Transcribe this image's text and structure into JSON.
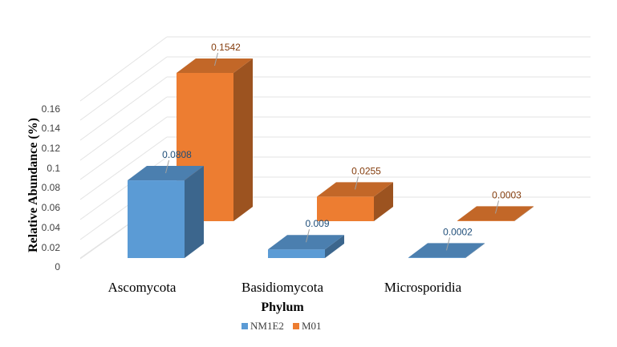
{
  "chart_data": {
    "type": "bar",
    "categories": [
      "Ascomycota",
      "Basidiomycota",
      "Microsporidia"
    ],
    "series": [
      {
        "name": "NM1E2",
        "values": [
          0.0808,
          0.009,
          0.0002
        ],
        "labels": [
          "0.0808",
          "0.009",
          "0.0002"
        ],
        "color": "#5B9BD5",
        "label_color": "#1F4E79"
      },
      {
        "name": "M01",
        "values": [
          0.1542,
          0.0255,
          0.0003
        ],
        "labels": [
          "0.1542",
          "0.0255",
          "0.0003"
        ],
        "color": "#ED7D31",
        "label_color": "#843C0C"
      }
    ],
    "xlabel": "Phylum",
    "ylabel": "Relative Abundance (%)",
    "ylim": [
      0,
      0.16
    ],
    "yticks": [
      0,
      0.02,
      0.04,
      0.06,
      0.08,
      0.1,
      0.12,
      0.14,
      0.16
    ],
    "ytick_labels": [
      "0",
      "0.02",
      "0.04",
      "0.06",
      "0.08",
      "0.1",
      "0.12",
      "0.14",
      "0.16"
    ],
    "grid": true,
    "legend_position": "bottom",
    "style": "3d-clustered-column"
  }
}
